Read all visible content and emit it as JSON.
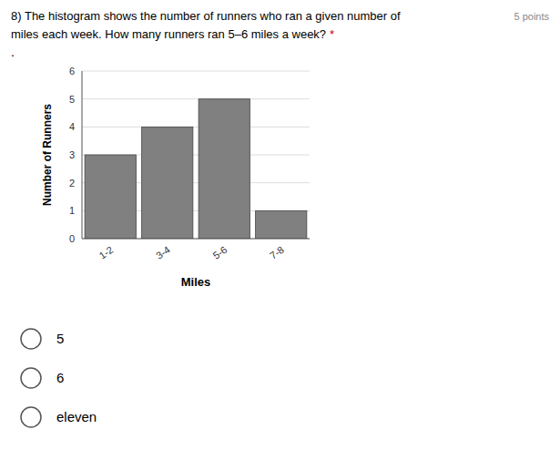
{
  "chart_data": {
    "type": "bar",
    "title": "8) The histogram shows the number of runners who ran a given number of",
    "subtitle": "miles each week. How many runners ran 5–6 miles a week?",
    "annotations": [
      {
        "text": "*",
        "color": "#cc0000"
      },
      {
        "text": "5 points"
      },
      {
        "text": "."
      }
    ],
    "options": [
      "5",
      "6",
      "eleven"
    ],
    "categories": [
      "1-2",
      "3-4",
      "5-6",
      "7-8"
    ],
    "values": [
      3,
      4,
      5,
      1
    ],
    "color": "#808080",
    "x_label": "Miles",
    "y_label": "Number of Runners",
    "ylim": [
      0,
      6
    ],
    "yticks": [
      0,
      1,
      2,
      3,
      4,
      5,
      6
    ],
    "grid": true
  }
}
